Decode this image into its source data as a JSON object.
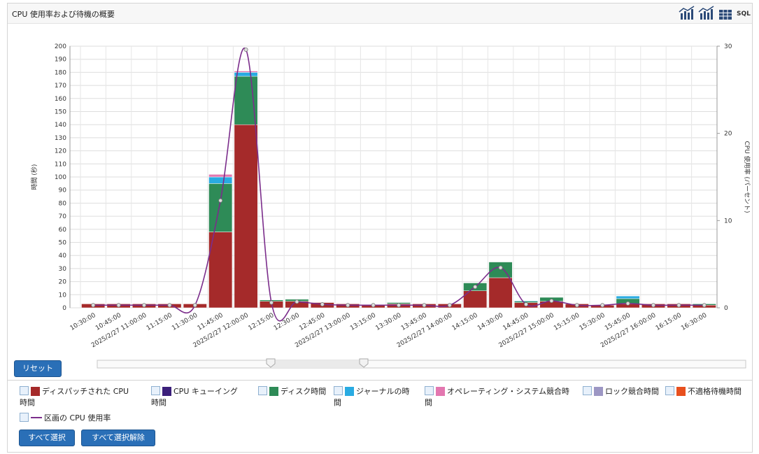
{
  "header": {
    "title": "CPU 使用率および待機の概要",
    "toolbar_icon_label": "SQL"
  },
  "controls": {
    "reset": "リセット",
    "select_all": "すべて選択",
    "deselect_all": "すべて選択解除"
  },
  "chart_data": {
    "type": "bar",
    "stacked": true,
    "ylabel": "時間 (秒)",
    "y2label": "CPU 使用率 (パーセント)",
    "categories": [
      "10:30:00",
      "10:45:00",
      "2025/2/27 11:00:00",
      "11:15:00",
      "11:30:00",
      "11:45:00",
      "2025/2/27 12:00:00",
      "12:15:00",
      "12:30:00",
      "12:45:00",
      "2025/2/27 13:00:00",
      "13:15:00",
      "13:30:00",
      "13:45:00",
      "2025/2/27 14:00:00",
      "14:15:00",
      "14:30:00",
      "14:45:00",
      "2025/2/27 15:00:00",
      "15:15:00",
      "15:30:00",
      "15:45:00",
      "2025/2/27 16:00:00",
      "16:15:00",
      "16:30:00"
    ],
    "ylim": [
      0,
      200
    ],
    "yticks": [
      0,
      10,
      20,
      30,
      40,
      50,
      60,
      70,
      80,
      90,
      100,
      110,
      120,
      130,
      140,
      150,
      160,
      170,
      180,
      190,
      200
    ],
    "y2lim": [
      0,
      30
    ],
    "y2ticks": [
      0,
      10,
      20,
      30
    ],
    "grid": true,
    "series": [
      {
        "name": "ディスパッチされた CPU 時間",
        "color": "#a52a2a",
        "values": [
          3,
          3,
          3,
          3,
          3,
          58,
          140,
          5,
          5,
          4,
          3,
          2.5,
          3,
          3,
          3,
          13,
          23,
          4,
          5,
          3,
          2,
          3,
          3,
          3,
          2
        ]
      },
      {
        "name": "CPU キューイング時間",
        "color": "#3b1f7a",
        "values": [
          0,
          0,
          0,
          0,
          0,
          0,
          0,
          0,
          0,
          0,
          0,
          0,
          0,
          0,
          0,
          0,
          0,
          0,
          0,
          0,
          0,
          0,
          0,
          0,
          0
        ]
      },
      {
        "name": "ディスク時間",
        "color": "#2e8b57",
        "values": [
          0,
          0,
          0,
          0,
          0,
          37,
          37,
          1,
          1.5,
          0,
          0,
          0,
          1,
          0,
          0,
          6,
          12,
          1,
          3,
          0,
          0,
          4,
          0,
          0,
          1
        ]
      },
      {
        "name": "ジャーナルの時間",
        "color": "#29abe2",
        "values": [
          0,
          0,
          0,
          0,
          0,
          5,
          3,
          0,
          0,
          0,
          0,
          0,
          0,
          0,
          0,
          0,
          0,
          0.5,
          0,
          0,
          0,
          2,
          0,
          0,
          0
        ]
      },
      {
        "name": "オペレーティング・システム競合時間",
        "color": "#e377b0",
        "values": [
          0,
          0,
          0,
          0,
          0,
          2,
          1,
          0,
          0,
          0,
          0,
          0,
          0,
          0,
          0,
          0,
          0,
          0,
          0,
          0,
          0,
          0,
          0,
          0,
          0
        ]
      },
      {
        "name": "ロック競合時間",
        "color": "#9d97c4",
        "values": [
          0,
          0,
          0,
          0,
          0,
          0,
          0,
          0,
          0,
          0,
          0,
          0,
          0,
          0,
          0,
          0,
          0,
          0,
          0,
          0,
          0,
          0,
          0,
          0,
          0
        ]
      },
      {
        "name": "不適格待機時間",
        "color": "#e8501e",
        "values": [
          0,
          0,
          0,
          0,
          0,
          0,
          0,
          0,
          0,
          0,
          0,
          0,
          0,
          0,
          0,
          0,
          0,
          0,
          0,
          0,
          0,
          0,
          0,
          0,
          0
        ]
      },
      {
        "name": "区画の CPU 使用率",
        "color": "#7b2d8b",
        "type": "line",
        "axis": "y2",
        "values": [
          0.3,
          0.3,
          0.3,
          0.3,
          0.3,
          12.3,
          29.6,
          0.6,
          0.7,
          0.4,
          0.3,
          0.3,
          0.3,
          0.3,
          0.3,
          2.4,
          4.6,
          0.4,
          0.8,
          0.3,
          0.3,
          0.5,
          0.3,
          0.3,
          0.3
        ]
      }
    ]
  }
}
